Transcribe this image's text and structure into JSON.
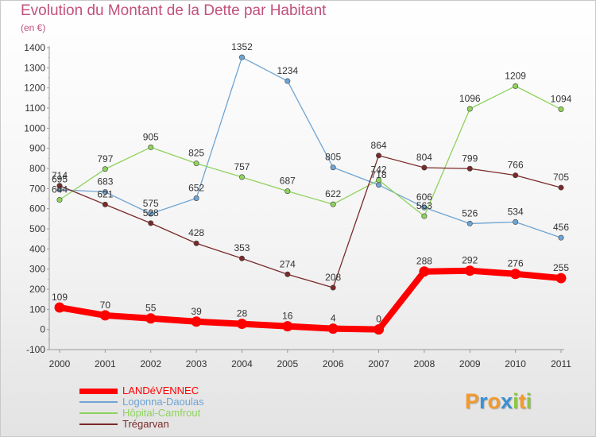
{
  "title": "Evolution du Montant de la Dette par Habitant",
  "subtitle": "(en €)",
  "logo": {
    "letters": [
      "P",
      "r",
      "o",
      "x",
      "i",
      "t",
      "i"
    ],
    "colors": [
      "#f29a2e",
      "#3a8fd0",
      "#f29a2e",
      "#3a8fd0",
      "#8cc63f",
      "#f29a2e",
      "#8cc63f"
    ]
  },
  "legend": {
    "items": [
      {
        "label": "LANDéVENNEC",
        "color": "#ff0000"
      },
      {
        "label": "Logonna-Daoulas",
        "color": "#6fa4d3"
      },
      {
        "label": "Hôpital-Camfrout",
        "color": "#8fd25c"
      },
      {
        "label": "Trégarvan",
        "color": "#7a2a2a"
      }
    ]
  },
  "chart_data": {
    "type": "line",
    "x": [
      "2000",
      "2001",
      "2002",
      "2003",
      "2004",
      "2005",
      "2006",
      "2007",
      "2008",
      "2009",
      "2010",
      "2011"
    ],
    "ylim": [
      -100,
      1400
    ],
    "yticks": [
      "-100",
      "0",
      "100",
      "200",
      "300",
      "400",
      "500",
      "600",
      "700",
      "800",
      "900",
      "1000",
      "1100",
      "1200",
      "1300",
      "1400"
    ],
    "grid": false,
    "legend_position": "bottom-left",
    "series": [
      {
        "name": "LANDéVENNEC",
        "color": "#ff0000",
        "values": [
          109,
          70,
          55,
          39,
          28,
          16,
          4,
          0,
          288,
          292,
          276,
          255
        ],
        "labels": [
          "109",
          "70",
          "55",
          "39",
          "28",
          "16",
          "4",
          "0",
          "288",
          "292",
          "276",
          "255"
        ]
      },
      {
        "name": "Logonna-Daoulas",
        "color": "#6fa4d3",
        "values": [
          695,
          683,
          575,
          652,
          1352,
          1234,
          805,
          718,
          606,
          526,
          534,
          456
        ],
        "labels": [
          "695",
          "683",
          "575",
          "652",
          "1352",
          "1234",
          "805",
          "718",
          "606",
          "526",
          "534",
          "456"
        ]
      },
      {
        "name": "Hôpital-Camfrout",
        "color": "#8fd25c",
        "values": [
          644,
          797,
          905,
          825,
          757,
          687,
          622,
          742,
          563,
          1096,
          1209,
          1094
        ],
        "labels": [
          "644",
          "797",
          "905",
          "825",
          "757",
          "687",
          "622",
          "742",
          "563",
          "1096",
          "1209",
          "1094"
        ]
      },
      {
        "name": "Trégarvan",
        "color": "#7a2a2a",
        "values": [
          714,
          621,
          528,
          428,
          353,
          274,
          208,
          864,
          804,
          799,
          766,
          705
        ],
        "labels": [
          "714",
          "621",
          "528",
          "428",
          "353",
          "274",
          "208",
          "864",
          "804",
          "799",
          "766",
          "705"
        ]
      }
    ]
  }
}
